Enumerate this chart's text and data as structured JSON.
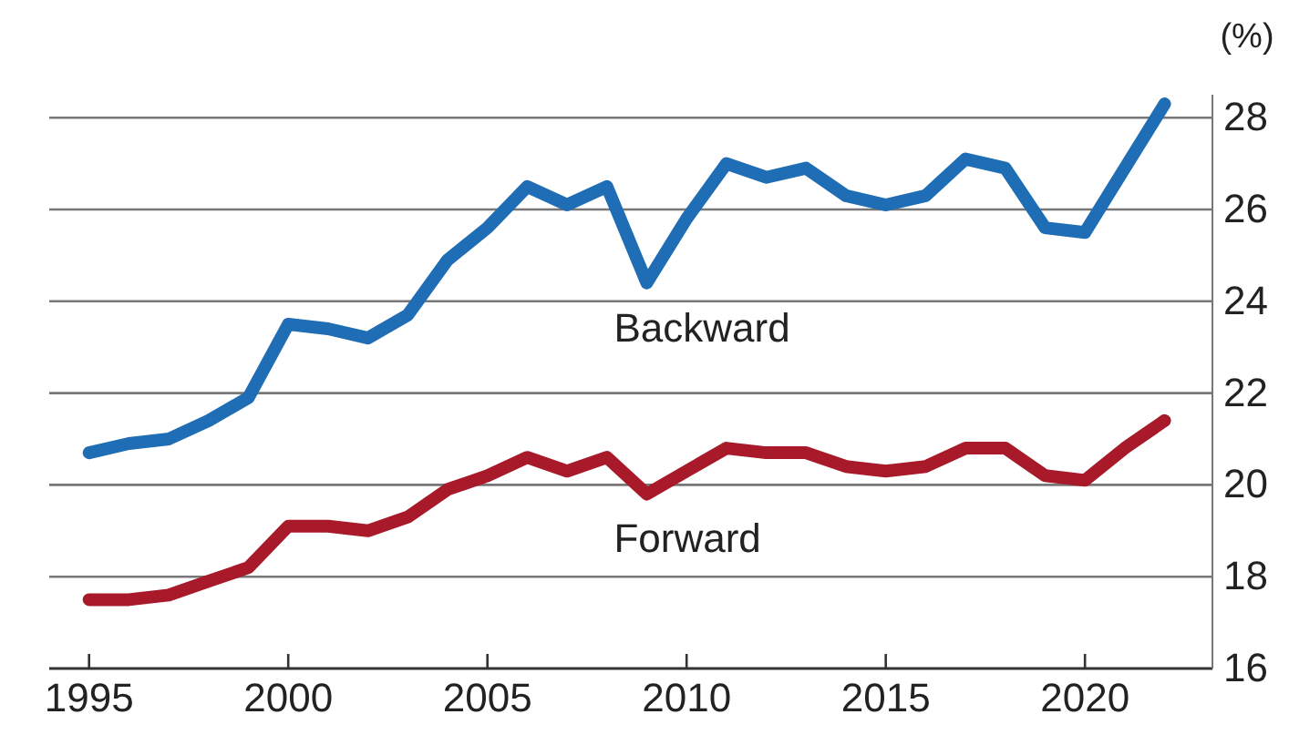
{
  "chart_data": {
    "type": "line",
    "ylabel": "(%)",
    "x": [
      1995,
      1996,
      1997,
      1998,
      1999,
      2000,
      2001,
      2002,
      2003,
      2004,
      2005,
      2006,
      2007,
      2008,
      2009,
      2010,
      2011,
      2012,
      2013,
      2014,
      2015,
      2016,
      2017,
      2018,
      2019,
      2020,
      2021,
      2022
    ],
    "series": [
      {
        "name": "Backward",
        "color": "#1f6db5",
        "values": [
          20.7,
          20.9,
          21.0,
          21.4,
          21.9,
          23.5,
          23.4,
          23.2,
          23.7,
          24.9,
          25.6,
          26.5,
          26.1,
          26.5,
          24.4,
          25.8,
          27.0,
          26.7,
          26.9,
          26.3,
          26.1,
          26.3,
          27.1,
          26.9,
          25.6,
          25.5,
          26.9,
          28.3
        ]
      },
      {
        "name": "Forward",
        "color": "#a8192a",
        "values": [
          17.5,
          17.5,
          17.6,
          17.9,
          18.2,
          19.1,
          19.1,
          19.0,
          19.3,
          19.9,
          20.2,
          20.6,
          20.3,
          20.6,
          19.8,
          20.3,
          20.8,
          20.7,
          20.7,
          20.4,
          20.3,
          20.4,
          20.8,
          20.8,
          20.2,
          20.1,
          20.8,
          21.4
        ]
      }
    ],
    "xlim": [
      1994,
      2023.2
    ],
    "xticks": [
      1995,
      2000,
      2005,
      2010,
      2015,
      2020
    ],
    "ylim": [
      16,
      28.5
    ],
    "yticks": [
      16,
      18,
      20,
      22,
      24,
      26,
      28
    ],
    "grid": "y",
    "legend": false,
    "marker": "none",
    "line_style": "solid"
  }
}
